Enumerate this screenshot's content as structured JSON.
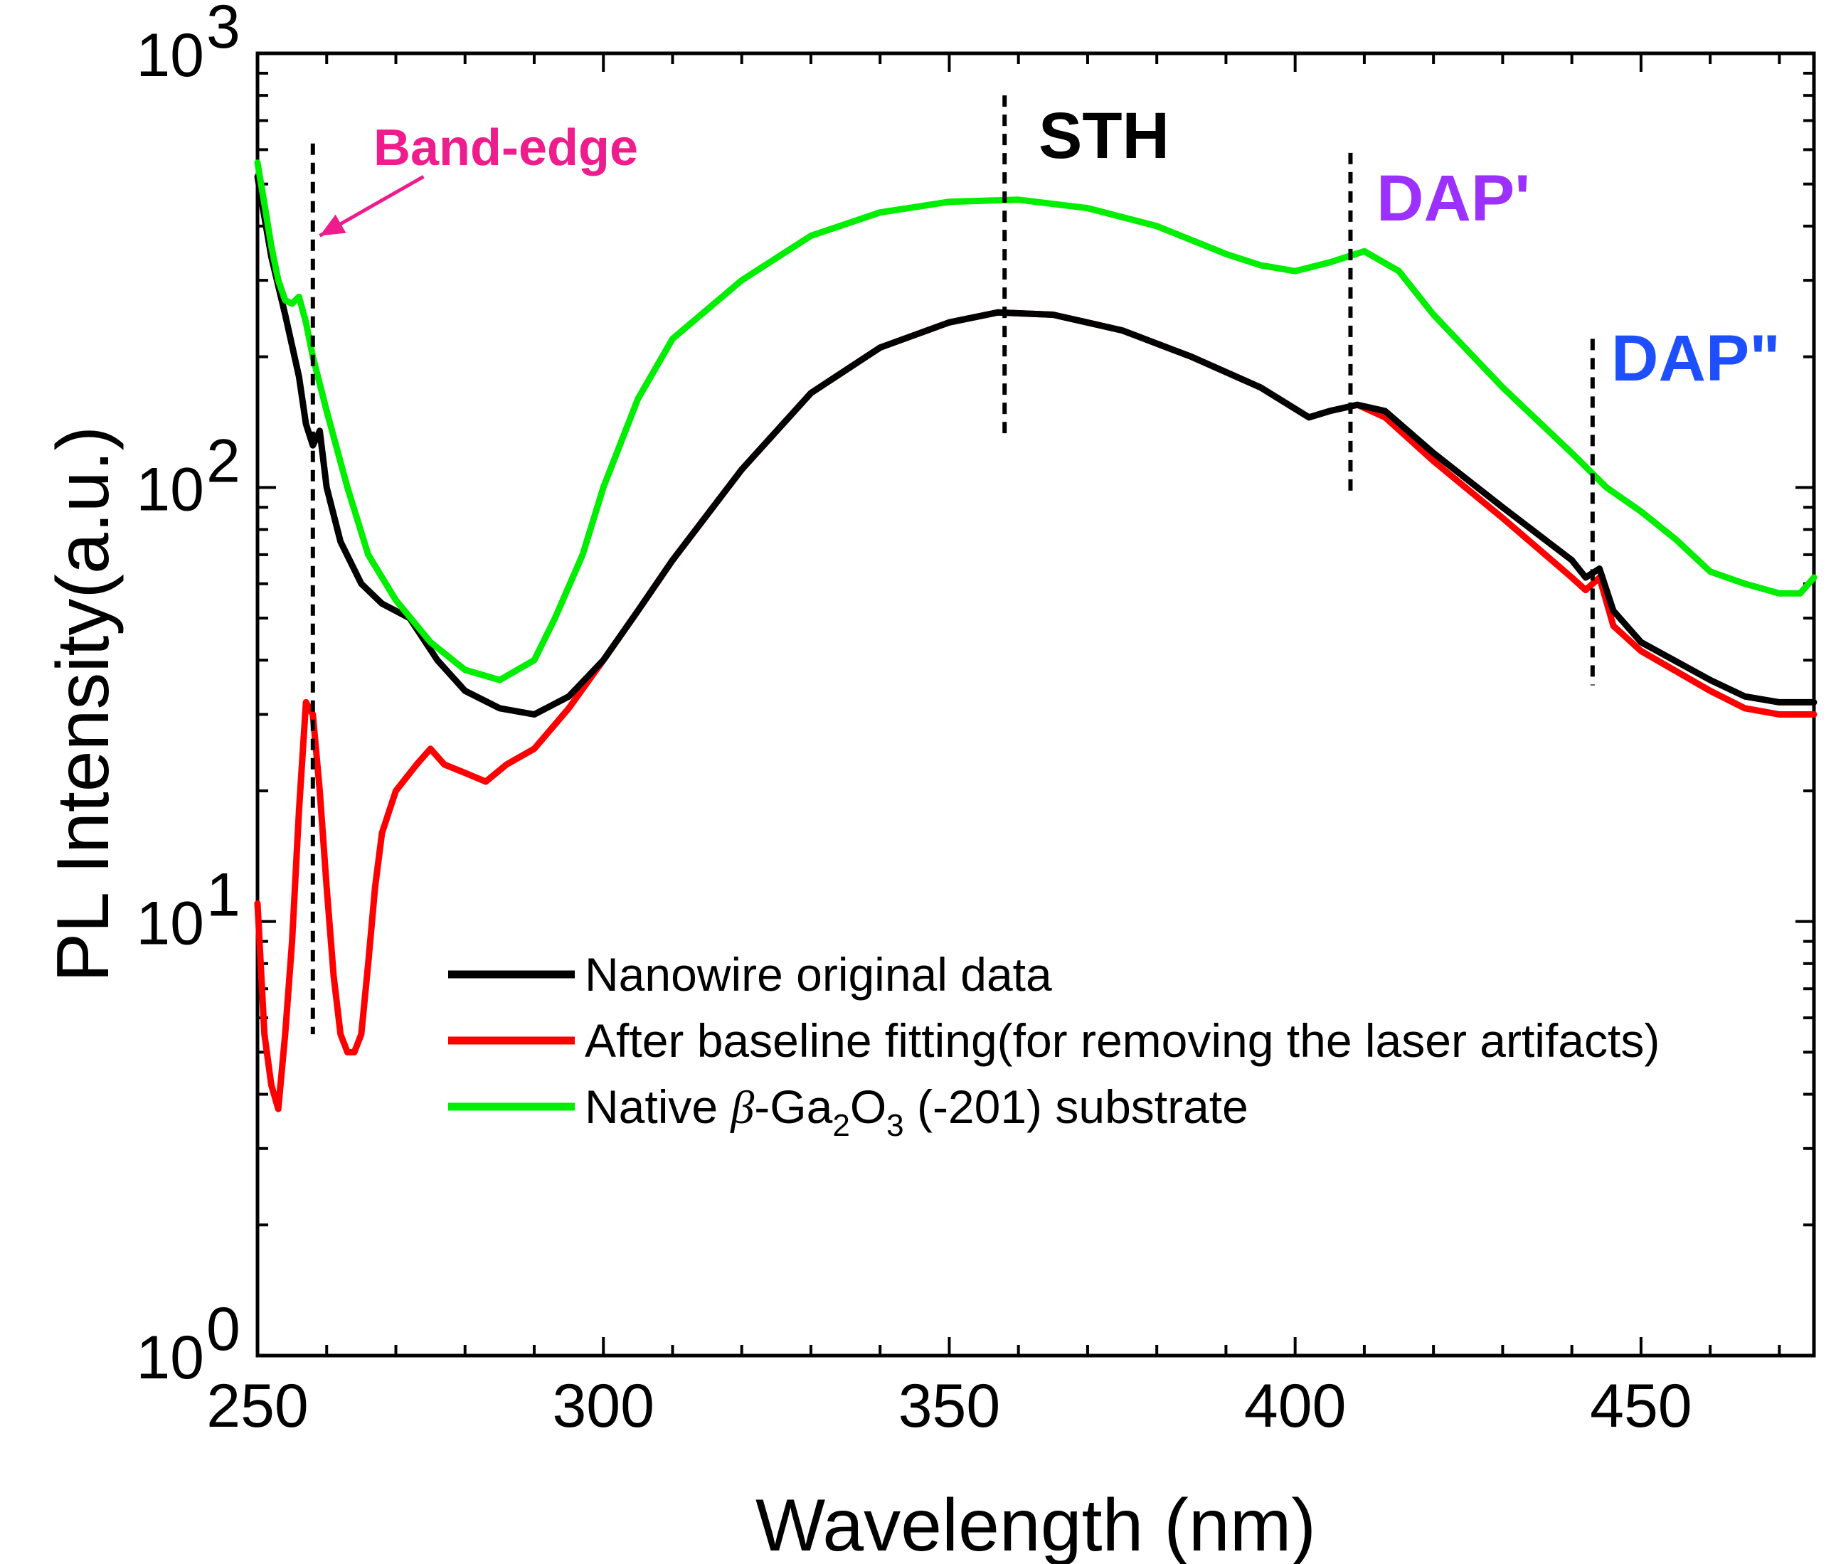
{
  "chart_data": {
    "type": "line",
    "title": "",
    "xlabel": "Wavelength (nm)",
    "ylabel": "PL Intensity(a.u.)",
    "xscale": "linear",
    "yscale": "log",
    "xlim": [
      250,
      475
    ],
    "ylim": [
      1,
      1000
    ],
    "xticks": [
      250,
      300,
      350,
      400,
      450
    ],
    "xtick_labels": [
      "250",
      "300",
      "350",
      "400",
      "450"
    ],
    "yticks": [
      {
        "base": "10",
        "exp": "0",
        "value": 1
      },
      {
        "base": "10",
        "exp": "1",
        "value": 10
      },
      {
        "base": "10",
        "exp": "2",
        "value": 100
      },
      {
        "base": "10",
        "exp": "3",
        "value": 1000
      }
    ],
    "legend": {
      "position": "lower-center",
      "entries": [
        {
          "label": "Nanowire original data",
          "color": "#000000"
        },
        {
          "label": "After baseline fitting(for removing the laser artifacts)",
          "color": "#ff0000"
        },
        {
          "label_parts": [
            "Native ",
            "β",
            "-Ga",
            "2",
            "O",
            "3",
            " (-201) substrate"
          ],
          "color": "#00ee00"
        }
      ]
    },
    "series": [
      {
        "name": "Nanowire original data",
        "color": "#000000",
        "x": [
          250,
          251,
          252,
          254,
          256,
          257,
          258,
          259,
          260,
          262,
          265,
          268,
          272,
          276,
          280,
          285,
          290,
          295,
          300,
          305,
          310,
          320,
          330,
          340,
          350,
          357,
          365,
          375,
          385,
          395,
          402,
          405,
          409,
          413,
          420,
          430,
          440,
          442,
          444,
          446,
          450,
          460,
          465,
          470,
          475
        ],
        "y": [
          520,
          420,
          340,
          250,
          180,
          140,
          125,
          135,
          100,
          75,
          60,
          54,
          50,
          40,
          34,
          31,
          30,
          33,
          40,
          52,
          68,
          110,
          165,
          210,
          240,
          253,
          250,
          230,
          200,
          170,
          145,
          150,
          155,
          150,
          120,
          90,
          68,
          62,
          65,
          52,
          44,
          36,
          33,
          32,
          32
        ]
      },
      {
        "name": "After baseline fitting(for removing the laser artifacts)",
        "color": "#ff0000",
        "x": [
          250,
          251,
          252,
          253,
          254,
          255,
          256,
          257,
          258,
          259,
          260,
          261,
          262,
          263,
          264,
          265,
          266,
          267,
          268,
          270,
          273,
          275,
          277,
          280,
          283,
          286,
          290,
          295,
          300,
          305,
          310,
          320,
          330,
          340,
          350,
          357,
          365,
          375,
          385,
          395,
          402,
          405,
          409,
          413,
          420,
          430,
          440,
          442,
          444,
          446,
          450,
          460,
          465,
          470,
          475
        ],
        "y": [
          11,
          5.5,
          4.2,
          3.7,
          5.5,
          9,
          18,
          32,
          30,
          20,
          12,
          7.5,
          5.5,
          5.0,
          5.0,
          5.5,
          8,
          12,
          16,
          20,
          23,
          25,
          23,
          22,
          21,
          23,
          25,
          31,
          40,
          52,
          68,
          110,
          165,
          210,
          240,
          253,
          250,
          230,
          200,
          170,
          145,
          150,
          155,
          145,
          115,
          85,
          62,
          58,
          62,
          48,
          42,
          34,
          31,
          30,
          30
        ]
      },
      {
        "name": "Native β-Ga2O3 (-201) substrate",
        "color": "#00ee00",
        "x": [
          250,
          251,
          252,
          253,
          254,
          255,
          256,
          257,
          258,
          260,
          263,
          266,
          270,
          275,
          280,
          285,
          290,
          293,
          297,
          300,
          305,
          310,
          320,
          330,
          340,
          350,
          360,
          370,
          380,
          390,
          395,
          400,
          405,
          410,
          415,
          420,
          430,
          440,
          445,
          450,
          455,
          460,
          465,
          470,
          473,
          475
        ],
        "y": [
          560,
          450,
          360,
          300,
          270,
          265,
          275,
          240,
          200,
          150,
          100,
          70,
          55,
          44,
          38,
          36,
          40,
          50,
          70,
          100,
          160,
          220,
          300,
          380,
          430,
          455,
          460,
          440,
          400,
          345,
          325,
          315,
          330,
          350,
          315,
          250,
          170,
          120,
          100,
          88,
          76,
          64,
          60,
          57,
          57,
          62
        ]
      }
    ],
    "annotations": [
      {
        "text": "Band-edge",
        "color": "#ee1c8c",
        "marker_x": 258,
        "marker_ymin": 5.5,
        "marker_ymax": 620,
        "arrow_to": [
          259,
          380
        ],
        "arrow_from": [
          274,
          520
        ]
      },
      {
        "text": "STH",
        "color": "#000000",
        "marker_x": 358,
        "marker_ymin": 130,
        "marker_ymax": 800
      },
      {
        "text": "DAP'",
        "color": "#9b30ff",
        "marker_x": 408,
        "marker_ymin": 95,
        "marker_ymax": 590
      },
      {
        "text": "DAP\"",
        "color": "#1e4fff",
        "marker_x": 443,
        "marker_ymin": 35,
        "marker_ymax": 220
      }
    ]
  }
}
